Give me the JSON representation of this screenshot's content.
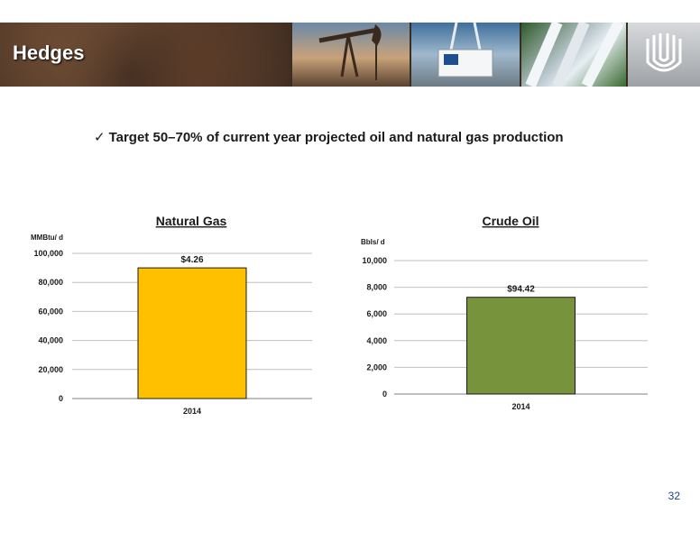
{
  "slide": {
    "title": "Hedges",
    "bullet": "Target 50–70%  of current year projected oil and natural gas production",
    "page_number": "32"
  },
  "chart_data": [
    {
      "type": "bar",
      "title": "Natural Gas",
      "ylabel": "MMBtu/ d",
      "categories": [
        "2014"
      ],
      "values": [
        90000
      ],
      "data_labels": [
        "$4.26"
      ],
      "ylim": [
        0,
        100000
      ],
      "yticks": [
        0,
        20000,
        40000,
        60000,
        80000,
        100000
      ],
      "ytick_labels": [
        "0",
        "20,000",
        "40,000",
        "60,000",
        "80,000",
        "100,000"
      ],
      "grid": true,
      "bar_color": "#FFC000"
    },
    {
      "type": "bar",
      "title": "Crude Oil",
      "ylabel": "Bbls/ d",
      "categories": [
        "2014"
      ],
      "values": [
        7250
      ],
      "data_labels": [
        "$94.42"
      ],
      "ylim": [
        0,
        10000
      ],
      "yticks": [
        0,
        2000,
        4000,
        6000,
        8000,
        10000
      ],
      "ytick_labels": [
        "0",
        "2,000",
        "4,000",
        "6,000",
        "8,000",
        "10,000"
      ],
      "grid": true,
      "bar_color": "#77933C"
    }
  ],
  "colors": {
    "banner_text": "#FFFFFF",
    "page_number": "#1F3F8F",
    "grid": "#BFBFBF"
  },
  "icons": {
    "banner_logo": "company-logo-icon",
    "bullet": "checkmark-icon"
  }
}
